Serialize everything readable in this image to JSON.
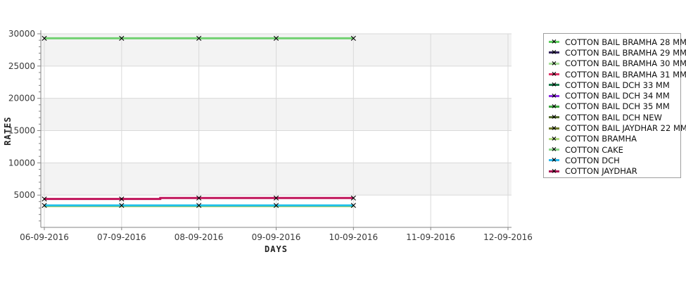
{
  "page": {
    "background": "#ffffff"
  },
  "chart_data": {
    "type": "line",
    "title": "",
    "xlabel": "DAYS",
    "ylabel": "RATES",
    "x_categories": [
      "06-09-2016",
      "07-09-2016",
      "08-09-2016",
      "09-09-2016",
      "10-09-2016",
      "11-09-2016",
      "12-09-2016"
    ],
    "ylim": [
      0,
      30000
    ],
    "y_tick_labels": [
      "5000",
      "10000",
      "15000",
      "20000",
      "25000",
      "30000"
    ],
    "y_major_step": 5000,
    "y_minor_step": 1000,
    "grid": true,
    "legend_position": "right",
    "colors": {
      "band": "#f3f3f3",
      "gridline": "#d9d9d9",
      "axis": "#848484",
      "tick_label": "#3a3a3a",
      "marker": "#000000"
    },
    "series": [
      {
        "label": "COTTON BAIL BRAMHA 28 MM",
        "color": "#5ecf5e"
      },
      {
        "label": "COTTON BAIL BRAMHA 29 MM",
        "color": "#34265c"
      },
      {
        "label": "COTTON BAIL BRAMHA 30 MM",
        "color": "#a8df9a"
      },
      {
        "label": "COTTON BAIL BRAMHA 31 MM",
        "color": "#e03468"
      },
      {
        "label": "COTTON BAIL DCH 33 MM",
        "color": "#1d7a4c"
      },
      {
        "label": "COTTON BAIL DCH 34 MM",
        "color": "#8a2be2"
      },
      {
        "label": "COTTON BAIL DCH 35 MM",
        "color": "#3fa63f"
      },
      {
        "label": "COTTON BAIL DCH NEW",
        "color": "#556b2f"
      },
      {
        "label": "COTTON BAIL JAYDHAR 22 MM",
        "color": "#6e7a2d"
      },
      {
        "label": "COTTON BRAMHA",
        "color": "#b4dc84"
      },
      {
        "label": "COTTON CAKE",
        "color": "#90d890"
      },
      {
        "label": "COTTON DCH",
        "color": "#29b8ee"
      },
      {
        "label": "COTTON JAYDHAR",
        "color": "#aa1255"
      }
    ],
    "rendered_lines": [
      {
        "name": "yellowgreen-line",
        "color": "#b6c83e",
        "days": [
          "06-09-2016",
          "07-09-2016",
          "08-09-2016",
          "09-09-2016",
          "10-09-2016"
        ],
        "values": [
          3300,
          3300,
          3300,
          3300,
          3300
        ],
        "show_markers": false,
        "step_midpoint": false
      },
      {
        "name": "cyan-line",
        "color": "#1ec0e8",
        "days": [
          "06-09-2016",
          "07-09-2016",
          "08-09-2016",
          "09-09-2016",
          "10-09-2016"
        ],
        "values": [
          3400,
          3400,
          3400,
          3400,
          3400
        ],
        "show_markers": true,
        "step_midpoint": false
      },
      {
        "name": "crimson-line",
        "color": "#c0145a",
        "days": [
          "06-09-2016",
          "07-09-2016",
          "08-09-2016",
          "09-09-2016",
          "10-09-2016"
        ],
        "values": [
          4400,
          4400,
          4550,
          4550,
          4550
        ],
        "show_markers": true,
        "step_midpoint": true
      },
      {
        "name": "green-line",
        "color": "#72d172",
        "days": [
          "06-09-2016",
          "07-09-2016",
          "08-09-2016",
          "09-09-2016",
          "10-09-2016"
        ],
        "values": [
          29300,
          29300,
          29300,
          29300,
          29300
        ],
        "show_markers": true,
        "step_midpoint": false
      }
    ]
  },
  "legend": {
    "title": ""
  }
}
